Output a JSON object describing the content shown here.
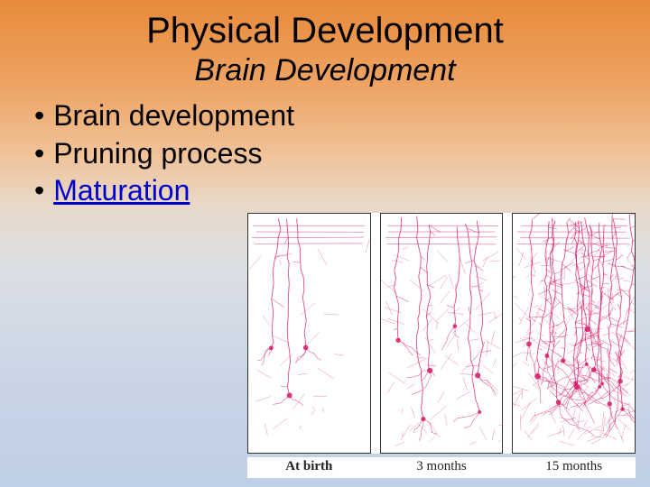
{
  "title": "Physical Development",
  "subtitle": "Brain Development",
  "title_fontsize": 40,
  "subtitle_fontsize": 34,
  "bullet_fontsize": 32,
  "bullets": [
    {
      "text": "Brain development",
      "link": false
    },
    {
      "text": "Pruning process",
      "link": false
    },
    {
      "text": "Maturation",
      "link": true
    }
  ],
  "link_color": "#0000cc",
  "text_color": "#000000",
  "background_gradient": [
    "#e88a3a",
    "#eda565",
    "#f0c39a",
    "#e8d9c8",
    "#dcdfe4",
    "#cbd6e6",
    "#bfcfe5"
  ],
  "figure": {
    "type": "infographic",
    "panels": [
      {
        "label": "At birth",
        "density": 12,
        "label_bold": true
      },
      {
        "label": "3 months",
        "density": 35,
        "label_bold": false
      },
      {
        "label": "15 months",
        "density": 90,
        "label_bold": false
      }
    ],
    "neuron_color": "#d61b6a",
    "panel_border_color": "#333333",
    "panel_background": "#ffffff",
    "caption_fontsize": 15,
    "caption_font": "Georgia"
  }
}
